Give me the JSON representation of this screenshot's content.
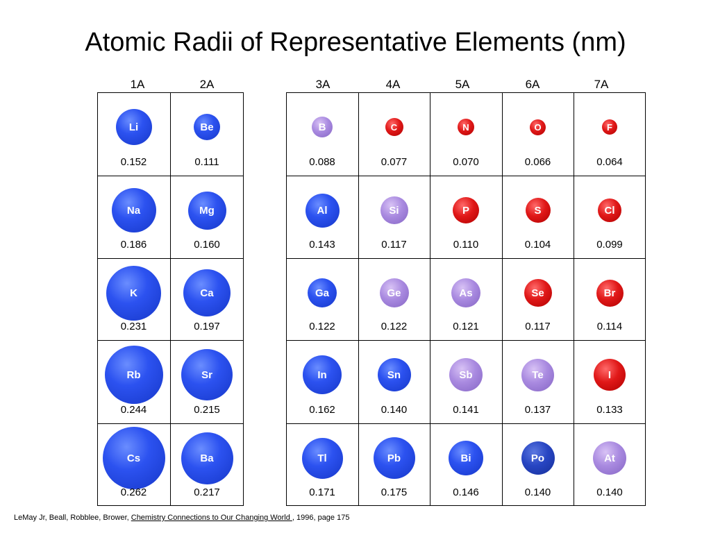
{
  "title": "Atomic Radii of Representative Elements (nm)",
  "group_headers": [
    "1A",
    "2A",
    "3A",
    "4A",
    "5A",
    "6A",
    "7A"
  ],
  "colors": {
    "metal": "#2c52f0",
    "metalloid": "#a98ae0",
    "nonmetal": "#e01818"
  },
  "elements": [
    {
      "symbol": "Li",
      "radius": "0.152",
      "type": "metal"
    },
    {
      "symbol": "Be",
      "radius": "0.111",
      "type": "metal"
    },
    {
      "symbol": "B",
      "radius": "0.088",
      "type": "metalloid"
    },
    {
      "symbol": "C",
      "radius": "0.077",
      "type": "nonmetal"
    },
    {
      "symbol": "N",
      "radius": "0.070",
      "type": "nonmetal"
    },
    {
      "symbol": "O",
      "radius": "0.066",
      "type": "nonmetal"
    },
    {
      "symbol": "F",
      "radius": "0.064",
      "type": "nonmetal"
    },
    {
      "symbol": "Na",
      "radius": "0.186",
      "type": "metal"
    },
    {
      "symbol": "Mg",
      "radius": "0.160",
      "type": "metal"
    },
    {
      "symbol": "Al",
      "radius": "0.143",
      "type": "metal"
    },
    {
      "symbol": "Si",
      "radius": "0.117",
      "type": "metalloid"
    },
    {
      "symbol": "P",
      "radius": "0.110",
      "type": "nonmetal"
    },
    {
      "symbol": "S",
      "radius": "0.104",
      "type": "nonmetal"
    },
    {
      "symbol": "Cl",
      "radius": "0.099",
      "type": "nonmetal"
    },
    {
      "symbol": "K",
      "radius": "0.231",
      "type": "metal"
    },
    {
      "symbol": "Ca",
      "radius": "0.197",
      "type": "metal"
    },
    {
      "symbol": "Ga",
      "radius": "0.122",
      "type": "metal"
    },
    {
      "symbol": "Ge",
      "radius": "0.122",
      "type": "metalloid"
    },
    {
      "symbol": "As",
      "radius": "0.121",
      "type": "metalloid"
    },
    {
      "symbol": "Se",
      "radius": "0.117",
      "type": "nonmetal"
    },
    {
      "symbol": "Br",
      "radius": "0.114",
      "type": "nonmetal"
    },
    {
      "symbol": "Rb",
      "radius": "0.244",
      "type": "metal"
    },
    {
      "symbol": "Sr",
      "radius": "0.215",
      "type": "metal"
    },
    {
      "symbol": "In",
      "radius": "0.162",
      "type": "metal"
    },
    {
      "symbol": "Sn",
      "radius": "0.140",
      "type": "metal"
    },
    {
      "symbol": "Sb",
      "radius": "0.141",
      "type": "metalloid"
    },
    {
      "symbol": "Te",
      "radius": "0.137",
      "type": "metalloid"
    },
    {
      "symbol": "I",
      "radius": "0.133",
      "type": "nonmetal"
    },
    {
      "symbol": "Cs",
      "radius": "0.262",
      "type": "metal"
    },
    {
      "symbol": "Ba",
      "radius": "0.217",
      "type": "metal"
    },
    {
      "symbol": "Tl",
      "radius": "0.171",
      "type": "metal"
    },
    {
      "symbol": "Pb",
      "radius": "0.175",
      "type": "metal"
    },
    {
      "symbol": "Bi",
      "radius": "0.146",
      "type": "metal"
    },
    {
      "symbol": "Po",
      "radius": "0.140",
      "type": "metal-dark"
    },
    {
      "symbol": "At",
      "radius": "0.140",
      "type": "metalloid"
    }
  ],
  "citation": {
    "authors": "LeMay Jr, Beall, Robblee, Brower, ",
    "book": "Chemistry Connections to Our Changing World ",
    "rest": ", 1996, page 175"
  }
}
